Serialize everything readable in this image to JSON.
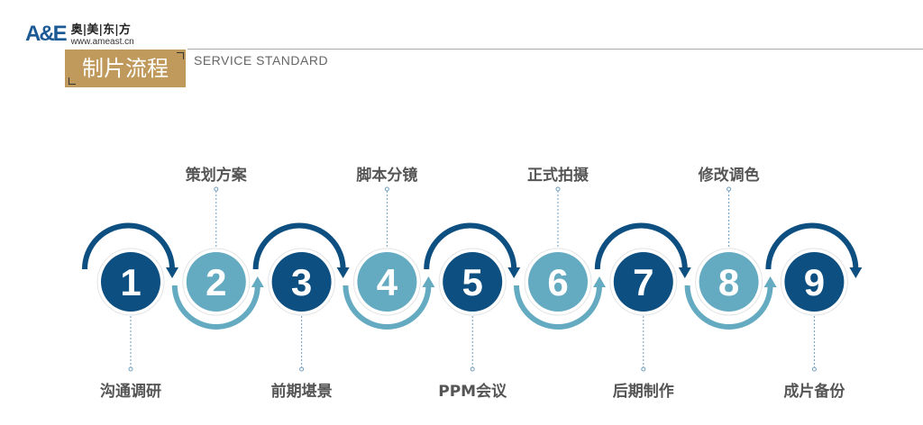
{
  "logo": {
    "mark": "A&E",
    "name_cn": "奥|美|东|方",
    "url": "www.ameast.cn"
  },
  "header": {
    "title": "制片流程",
    "subtitle": "SERVICE STANDARD"
  },
  "colors": {
    "dark": "#0d4f80",
    "light": "#64abc2",
    "gold": "#c09a5c"
  },
  "steps": [
    {
      "number": "1",
      "label": "沟通调研"
    },
    {
      "number": "2",
      "label": "策划方案"
    },
    {
      "number": "3",
      "label": "前期堪景"
    },
    {
      "number": "4",
      "label": "脚本分镜"
    },
    {
      "number": "5",
      "label": "PPM会议"
    },
    {
      "number": "6",
      "label": "正式拍摄"
    },
    {
      "number": "7",
      "label": "后期制作"
    },
    {
      "number": "8",
      "label": "修改调色"
    },
    {
      "number": "9",
      "label": "成片备份"
    }
  ]
}
